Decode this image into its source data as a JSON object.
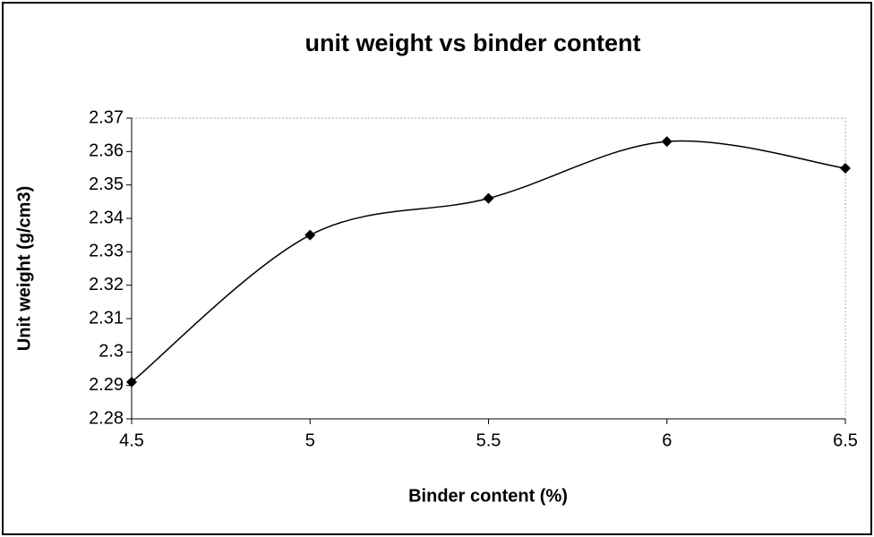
{
  "chart_data": {
    "type": "line",
    "title": "unit weight vs binder content",
    "x_label": "Binder content (%)",
    "y_label": "Unit weight (g/cm3)",
    "x": [
      4.5,
      5,
      5.5,
      6,
      6.5
    ],
    "values": [
      2.291,
      2.335,
      2.346,
      2.363,
      2.355
    ],
    "color": "#000000",
    "smooth": true,
    "marker": "diamond",
    "xlim": [
      4.5,
      6.5
    ],
    "xticks": [
      4.5,
      5,
      5.5,
      6,
      6.5
    ],
    "ylim": [
      2.28,
      2.37
    ],
    "yticks": [
      2.28,
      2.29,
      2.3,
      2.31,
      2.32,
      2.33,
      2.34,
      2.35,
      2.36,
      2.37
    ]
  }
}
